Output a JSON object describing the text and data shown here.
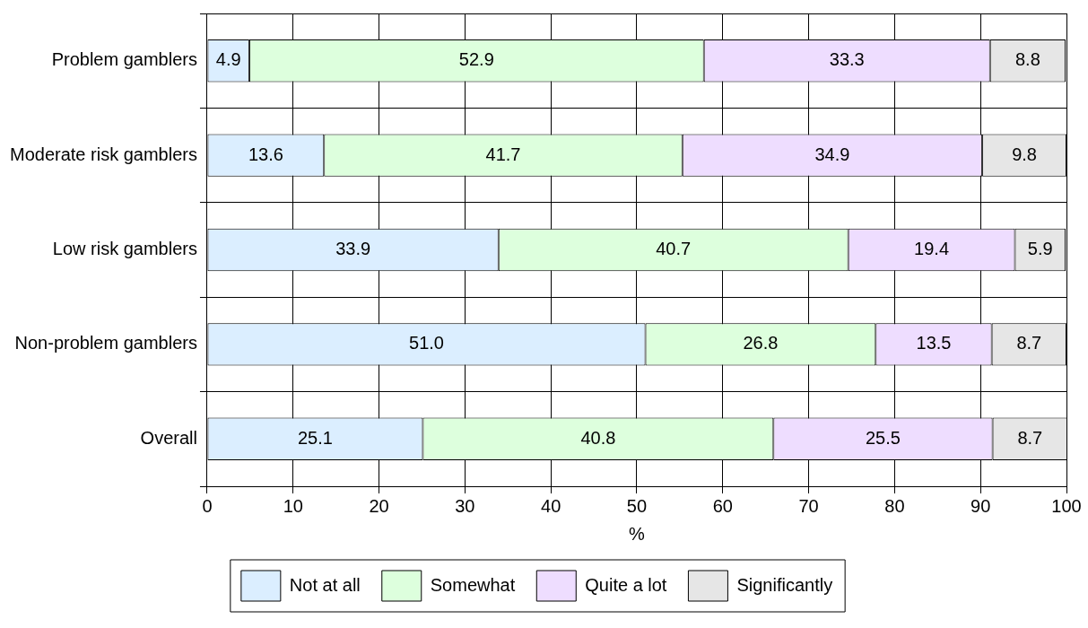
{
  "chart_data": {
    "type": "bar",
    "orientation": "horizontal",
    "stacked": true,
    "xlabel": "%",
    "categories": [
      "Problem gamblers",
      "Moderate risk gamblers",
      "Low risk gamblers",
      "Non-problem gamblers",
      "Overall"
    ],
    "series": [
      {
        "name": "Not at all",
        "color": "#dbeeff",
        "values": [
          4.9,
          13.6,
          33.9,
          51.0,
          25.1
        ]
      },
      {
        "name": "Somewhat",
        "color": "#ddffdd",
        "values": [
          52.9,
          41.7,
          40.7,
          26.8,
          40.8
        ]
      },
      {
        "name": "Quite a lot",
        "color": "#eeddff",
        "values": [
          33.3,
          34.9,
          19.4,
          13.5,
          25.5
        ]
      },
      {
        "name": "Significantly",
        "color": "#e6e6e6",
        "values": [
          8.8,
          9.8,
          5.9,
          8.7,
          8.7
        ]
      }
    ],
    "xlim": [
      0,
      100
    ],
    "xticks": [
      0,
      10,
      20,
      30,
      40,
      50,
      60,
      70,
      80,
      90,
      100
    ],
    "grid": true,
    "legend": "bottom",
    "value_labels": [
      [
        "4.9",
        "13.6",
        "33.9",
        "51.0",
        "25.1"
      ],
      [
        "52.9",
        "41.7",
        "40.7",
        "26.8",
        "40.8"
      ],
      [
        "33.3",
        "34.9",
        "19.4",
        "13.5",
        "25.5"
      ],
      [
        "8.8",
        "9.8",
        "5.9",
        "8.7",
        "8.7"
      ]
    ]
  }
}
